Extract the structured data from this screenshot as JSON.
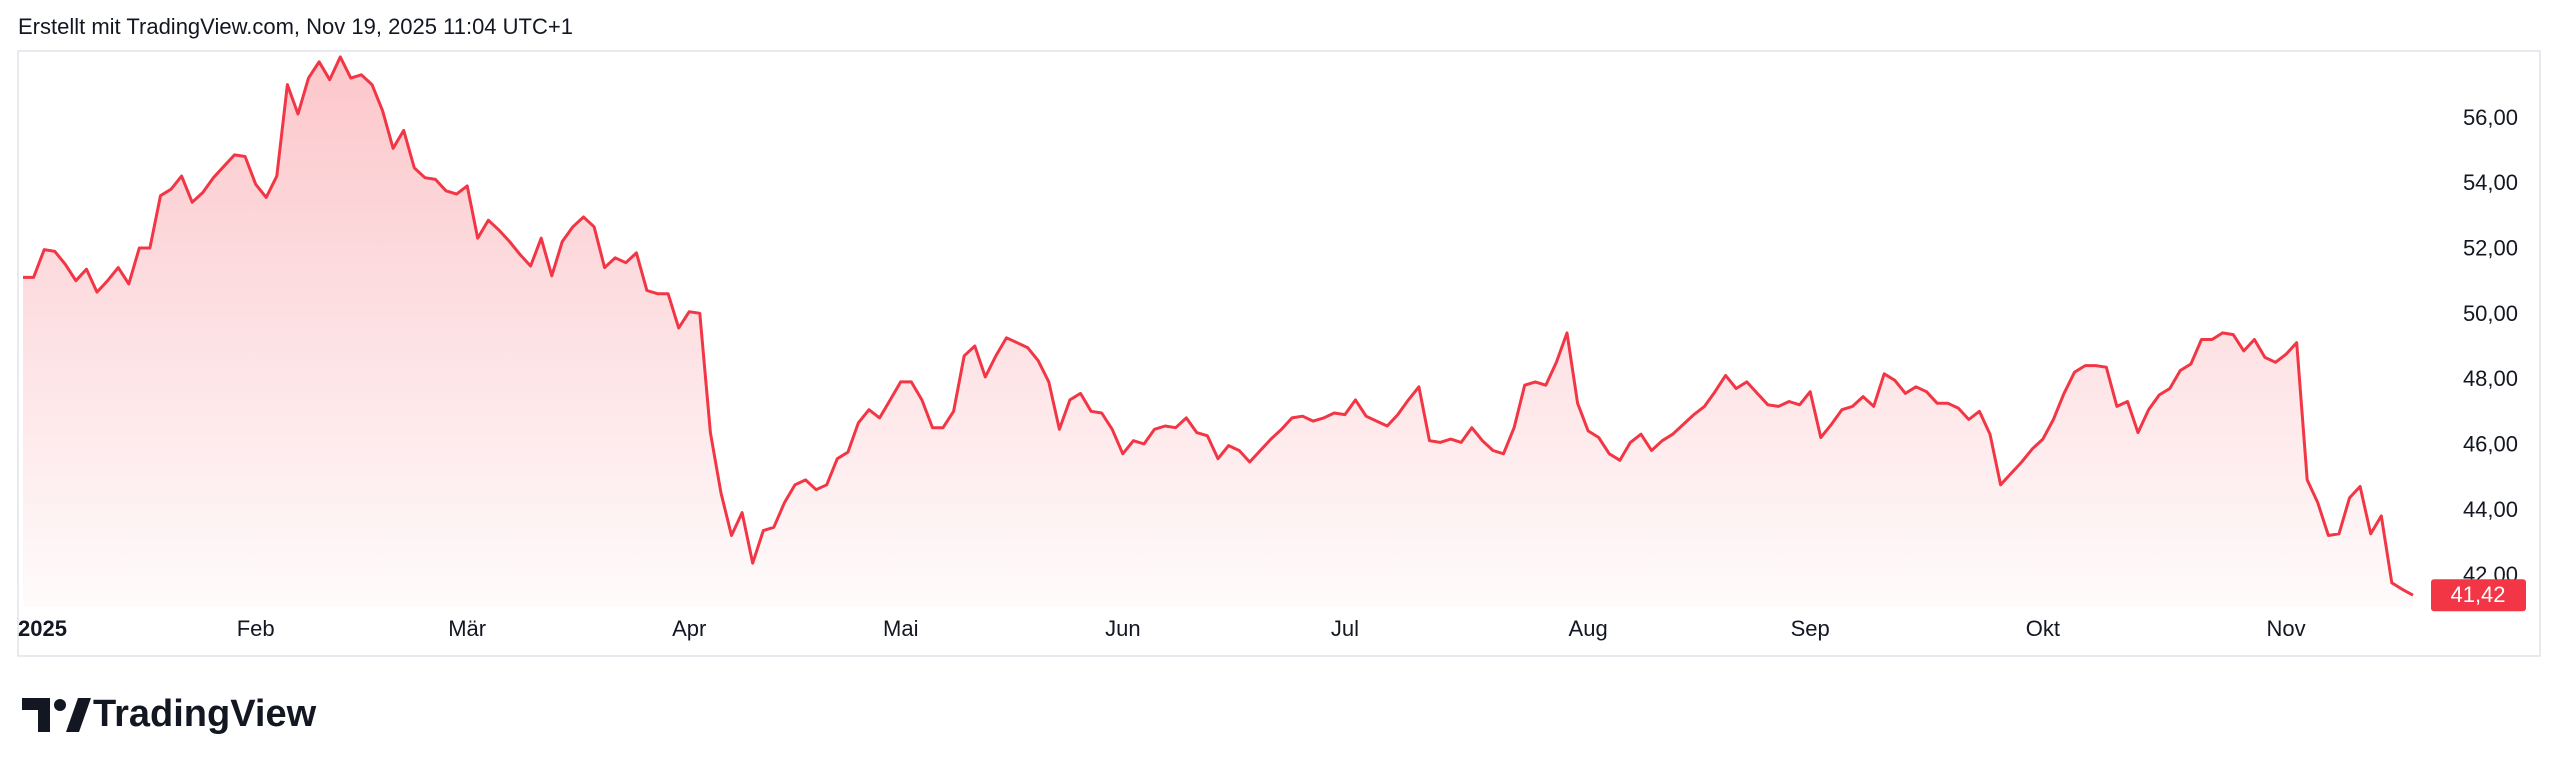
{
  "header": {
    "text": "Erstellt mit TradingView.com, Nov 19, 2025 11:04 UTC+1"
  },
  "footer": {
    "logo_text": "TradingView"
  },
  "chart_data": {
    "type": "line",
    "color": "#f23645",
    "categories": [
      "2025",
      null,
      null,
      null,
      null,
      null,
      null,
      null,
      null,
      null,
      null,
      null,
      null,
      null,
      null,
      null,
      null,
      null,
      null,
      null,
      null,
      null,
      "Feb",
      null,
      null,
      null,
      null,
      null,
      null,
      null,
      null,
      null,
      null,
      null,
      null,
      null,
      null,
      null,
      null,
      null,
      null,
      null,
      "Mär",
      null,
      null,
      null,
      null,
      null,
      null,
      null,
      null,
      null,
      null,
      null,
      null,
      null,
      null,
      null,
      null,
      null,
      null,
      null,
      null,
      "Apr",
      null,
      null,
      null,
      null,
      null,
      null,
      null,
      null,
      null,
      null,
      null,
      null,
      null,
      null,
      null,
      null,
      null,
      null,
      null,
      "Mai",
      null,
      null,
      null,
      null,
      null,
      null,
      null,
      null,
      null,
      null,
      null,
      null,
      null,
      null,
      null,
      null,
      null,
      null,
      null,
      null,
      "Jun",
      null,
      null,
      null,
      null,
      null,
      null,
      null,
      null,
      null,
      null,
      null,
      null,
      null,
      null,
      null,
      null,
      null,
      null,
      null,
      null,
      "Jul",
      null,
      null,
      null,
      null,
      null,
      null,
      null,
      null,
      null,
      null,
      null,
      null,
      null,
      null,
      null,
      null,
      null,
      null,
      null,
      null,
      null,
      null,
      "Aug",
      null,
      null,
      null,
      null,
      null,
      null,
      null,
      null,
      null,
      null,
      null,
      null,
      null,
      null,
      null,
      null,
      null,
      null,
      null,
      null,
      "Sep",
      null,
      null,
      null,
      null,
      null,
      null,
      null,
      null,
      null,
      null,
      null,
      null,
      null,
      null,
      null,
      null,
      null,
      null,
      null,
      null,
      null,
      "Okt",
      null,
      null,
      null,
      null,
      null,
      null,
      null,
      null,
      null,
      null,
      null,
      null,
      null,
      null,
      null,
      null,
      null,
      null,
      null,
      null,
      null,
      null,
      "Nov",
      null,
      null,
      null,
      null,
      null,
      null,
      null,
      null,
      null,
      null,
      null,
      null
    ],
    "values": [
      51.15,
      51.15,
      52.0,
      51.95,
      51.55,
      51.05,
      51.4,
      50.7,
      51.05,
      51.45,
      50.95,
      52.05,
      52.05,
      53.65,
      53.85,
      54.25,
      53.45,
      53.75,
      54.2,
      54.55,
      54.9,
      54.85,
      54.0,
      53.6,
      54.25,
      57.05,
      56.15,
      57.25,
      57.75,
      57.2,
      57.9,
      57.25,
      57.35,
      57.05,
      56.25,
      55.1,
      55.65,
      54.5,
      54.2,
      54.15,
      53.8,
      53.7,
      53.95,
      52.35,
      52.9,
      52.6,
      52.25,
      51.85,
      51.5,
      52.35,
      51.2,
      52.25,
      52.7,
      53.0,
      52.7,
      51.45,
      51.75,
      51.6,
      51.9,
      50.75,
      50.65,
      50.65,
      49.6,
      50.1,
      50.05,
      46.4,
      44.55,
      43.25,
      43.95,
      42.4,
      43.4,
      43.5,
      44.25,
      44.8,
      44.95,
      44.65,
      44.8,
      45.6,
      45.8,
      46.7,
      47.1,
      46.85,
      47.4,
      47.95,
      47.95,
      47.4,
      46.55,
      46.55,
      47.05,
      48.75,
      49.05,
      48.1,
      48.75,
      49.3,
      49.15,
      49.0,
      48.6,
      47.95,
      46.5,
      47.4,
      47.6,
      47.05,
      47.0,
      46.5,
      45.75,
      46.15,
      46.05,
      46.5,
      46.6,
      46.55,
      46.85,
      46.4,
      46.3,
      45.6,
      46.0,
      45.85,
      45.5,
      45.85,
      46.2,
      46.5,
      46.85,
      46.9,
      46.75,
      46.85,
      47.0,
      46.95,
      47.4,
      46.9,
      46.75,
      46.6,
      46.95,
      47.4,
      47.8,
      46.15,
      46.1,
      46.2,
      46.1,
      46.55,
      46.15,
      45.85,
      45.75,
      46.55,
      47.85,
      47.95,
      47.85,
      48.55,
      49.45,
      47.3,
      46.45,
      46.25,
      45.75,
      45.55,
      46.1,
      46.35,
      45.85,
      46.15,
      46.35,
      46.65,
      46.95,
      47.2,
      47.65,
      48.15,
      47.75,
      47.95,
      47.6,
      47.25,
      47.2,
      47.35,
      47.25,
      47.65,
      46.25,
      46.65,
      47.1,
      47.2,
      47.5,
      47.2,
      48.2,
      48.0,
      47.6,
      47.8,
      47.65,
      47.3,
      47.3,
      47.15,
      46.8,
      47.05,
      46.35,
      44.8,
      45.15,
      45.5,
      45.9,
      46.2,
      46.8,
      47.6,
      48.25,
      48.45,
      48.45,
      48.4,
      47.2,
      47.35,
      46.4,
      47.1,
      47.55,
      47.75,
      48.3,
      48.5,
      49.25,
      49.25,
      49.45,
      49.4,
      48.9,
      49.25,
      48.7,
      48.55,
      48.8,
      49.15,
      44.95,
      44.25,
      43.25,
      43.3,
      44.4,
      44.75,
      43.3,
      43.85,
      41.8,
      41.6,
      41.42
    ],
    "value_labels": [
      null,
      null,
      null,
      null,
      null,
      null,
      null,
      null,
      null,
      null,
      null,
      null,
      null,
      null,
      null,
      null,
      null,
      null,
      null,
      null,
      null,
      null,
      null,
      null,
      null,
      null,
      null,
      null,
      null,
      null,
      null,
      null,
      null,
      null,
      null,
      null,
      null,
      null,
      null,
      null,
      null,
      null,
      null,
      null,
      null,
      null,
      null,
      null,
      null,
      null,
      null,
      null,
      null,
      null,
      null,
      null,
      null,
      null,
      null,
      null,
      null,
      null,
      null,
      null,
      null,
      null,
      null,
      null,
      null,
      null,
      null,
      null,
      null,
      null,
      null,
      null,
      null,
      null,
      null,
      null,
      null,
      null,
      null,
      null,
      null,
      null,
      null,
      null,
      null,
      null,
      null,
      null,
      null,
      null,
      null,
      null,
      null,
      null,
      null,
      null,
      null,
      null,
      null,
      null,
      null,
      null,
      null,
      null,
      null,
      null,
      null,
      null,
      null,
      null,
      null,
      null,
      null,
      null,
      null,
      null,
      null,
      null,
      null,
      null,
      null,
      null,
      null,
      null,
      null,
      null,
      null,
      null,
      null,
      null,
      null,
      null,
      null,
      null,
      null,
      null,
      null,
      null,
      null,
      null,
      null,
      null,
      null,
      null,
      null,
      null,
      null,
      null,
      null,
      null,
      null,
      null,
      null,
      null,
      null,
      null,
      null,
      null,
      null,
      null,
      null,
      null,
      null,
      null,
      null,
      null,
      null,
      null,
      null,
      null,
      null,
      null,
      null,
      null,
      null,
      null,
      null,
      null,
      null,
      null,
      null,
      null,
      null,
      null,
      null,
      null,
      null,
      null,
      null,
      null,
      null,
      null,
      null,
      null,
      null,
      null,
      null,
      null,
      null,
      null,
      null,
      null,
      null,
      null,
      null,
      null,
      null,
      null,
      null,
      null,
      null,
      null,
      null,
      null,
      null,
      null,
      null,
      null,
      null,
      null,
      null,
      null,
      "41,42"
    ],
    "ylim": [
      41.06,
      58.08
    ],
    "yticks": [
      {
        "value": 42,
        "label": "42,00"
      },
      {
        "value": 44,
        "label": "44,00"
      },
      {
        "value": 46,
        "label": "46,00"
      },
      {
        "value": 48,
        "label": "48,00"
      },
      {
        "value": 50,
        "label": "50,00"
      },
      {
        "value": 52,
        "label": "52,00"
      },
      {
        "value": 54,
        "label": "54,00"
      },
      {
        "value": 56,
        "label": "56,00"
      }
    ],
    "grid": false
  }
}
